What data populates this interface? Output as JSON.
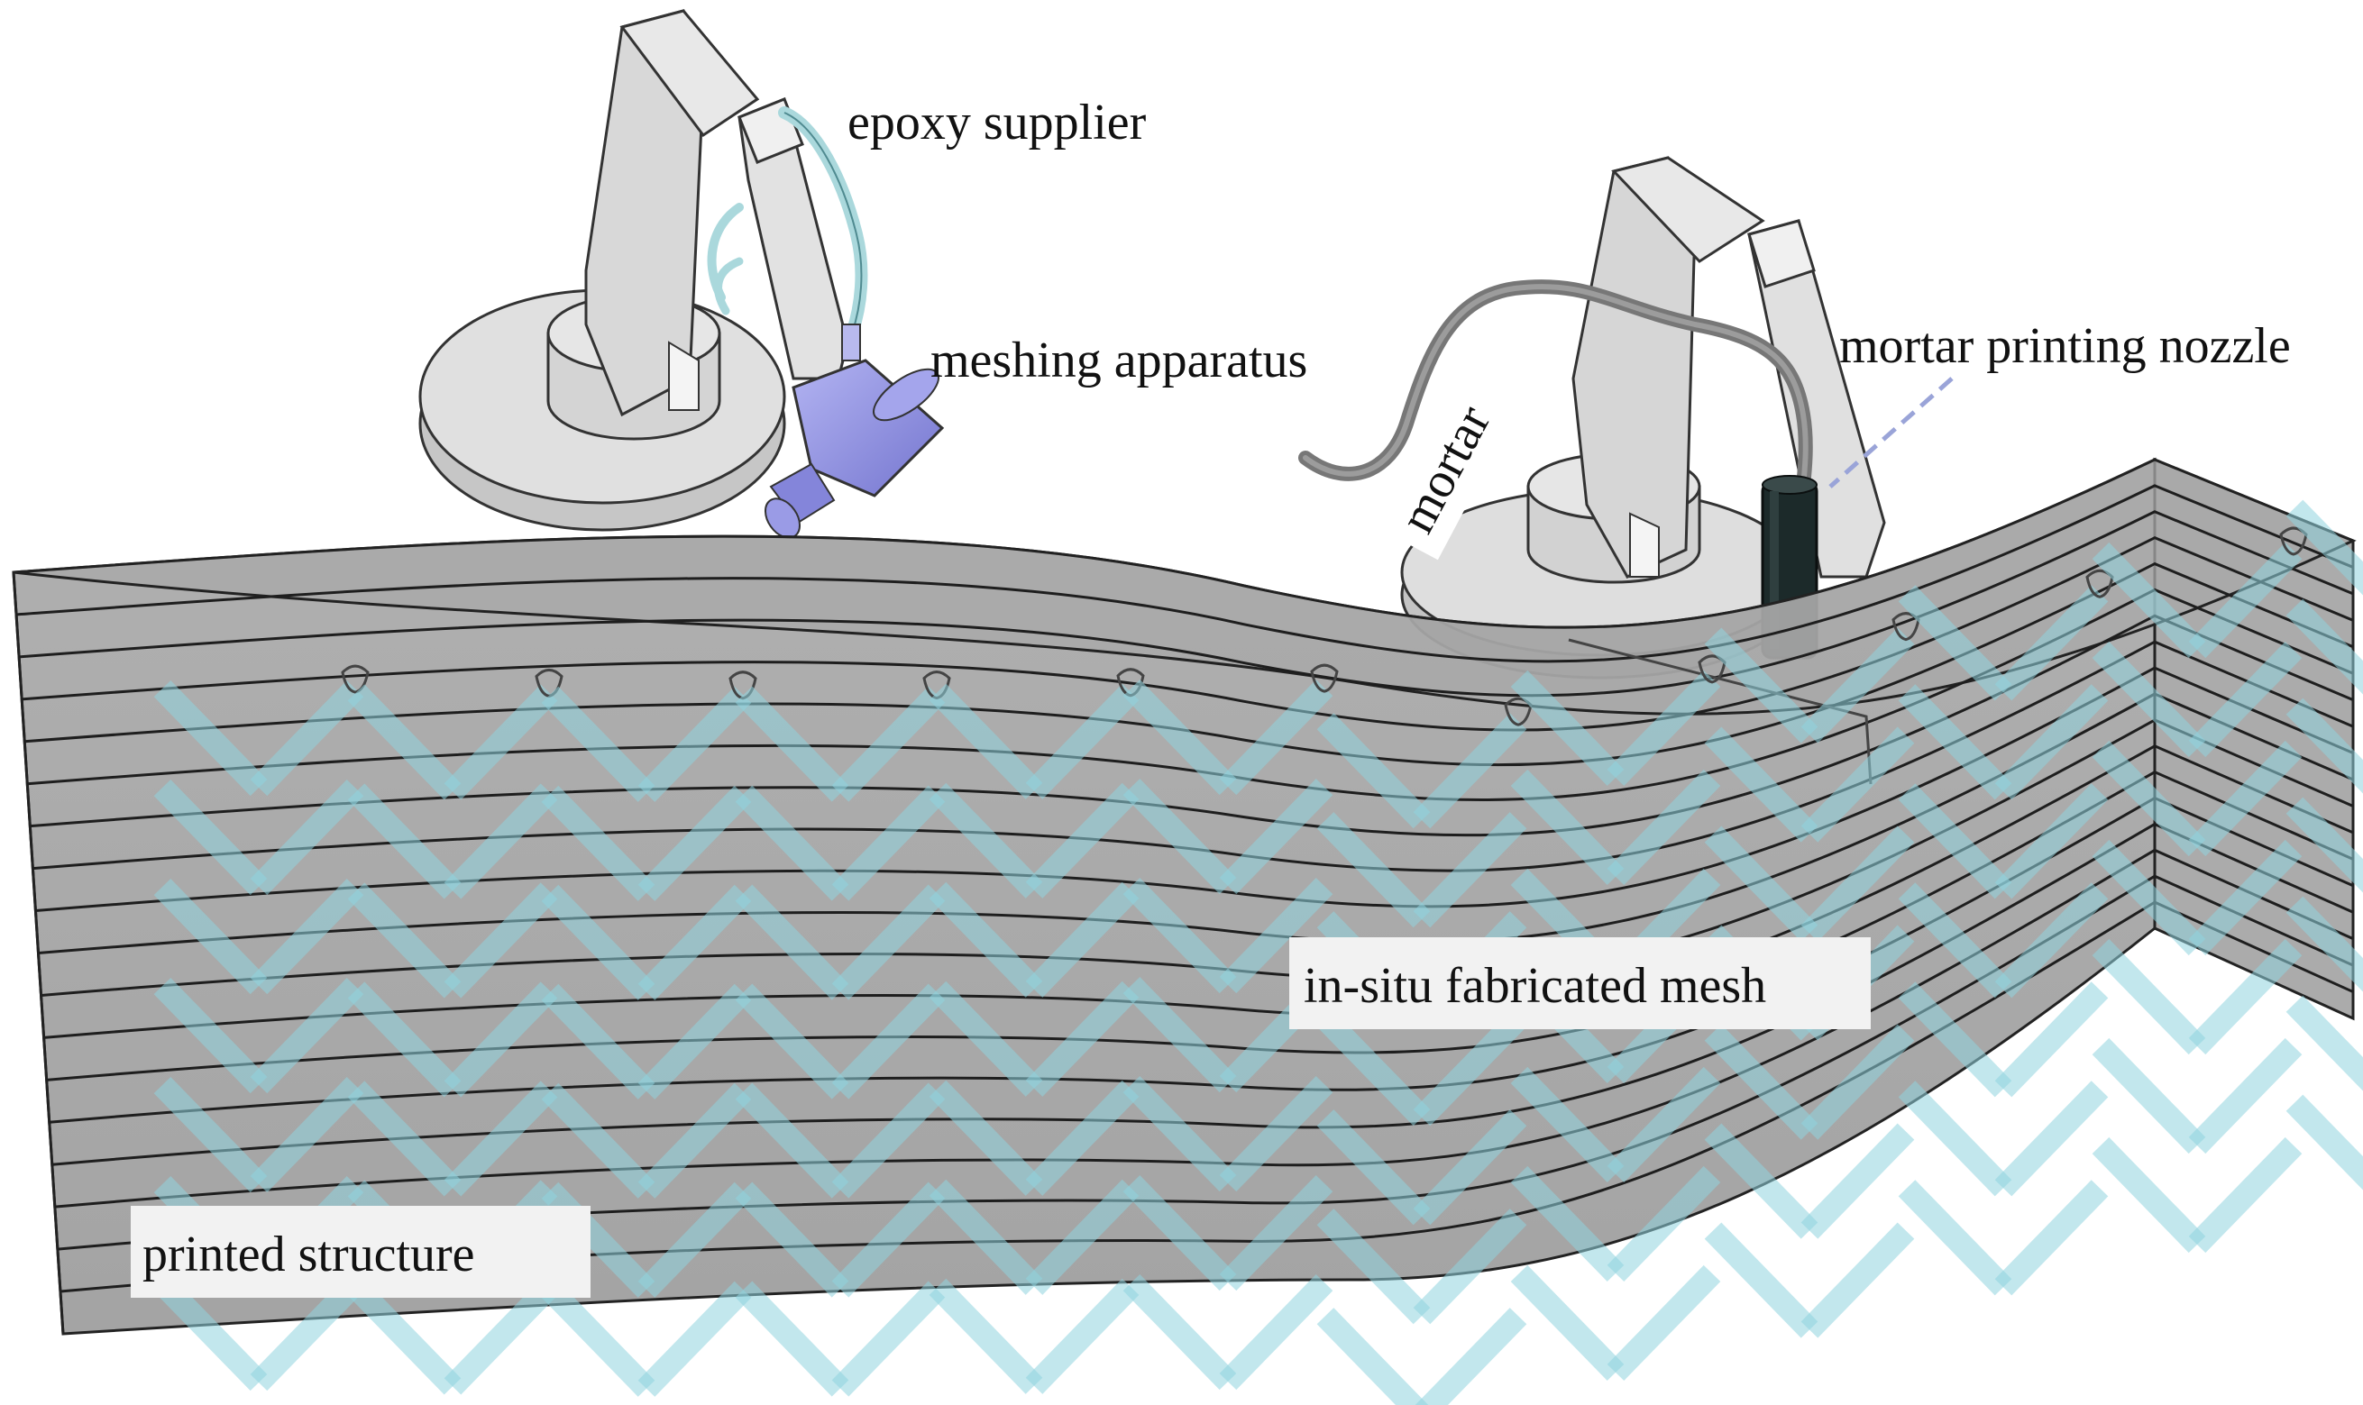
{
  "labels": {
    "epoxy_supplier": "epoxy supplier",
    "meshing_apparatus": "meshing apparatus",
    "mortar": "mortar",
    "mortar_printing_nozzle": "mortar printing nozzle",
    "in_situ_mesh": "in-situ fabricated mesh",
    "printed_structure": "printed structure"
  },
  "icons": {
    "robot_left": "robot-arm-icon",
    "robot_right": "robot-arm-icon",
    "meshing_head": "meshing-apparatus-icon",
    "nozzle": "printing-nozzle-icon"
  },
  "colors": {
    "wall": "#8c8c8c",
    "wall_edge": "#1e1e1e",
    "mesh": "#8fd3df",
    "robot_body": "#dcdcdc",
    "meshing_head": "#8e8fe0",
    "nozzle": "#1c2a2a",
    "hose": "#8a8a8a",
    "epoxy_tube": "#aad8dc"
  }
}
